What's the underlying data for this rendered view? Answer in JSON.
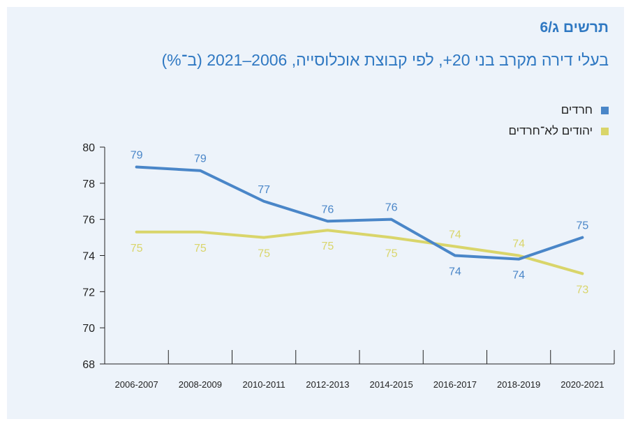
{
  "figure": {
    "label": "תרשים ג/6",
    "title": "בעלי דירה מקרב בני 20+, לפי קבוצת אוכלוסייה, 2006–2021 (ב־%)"
  },
  "legend": [
    {
      "label": "חרדים",
      "color": "#4a86c8"
    },
    {
      "label": "יהודים לא־חרדים",
      "color": "#d9d56a"
    }
  ],
  "chart_data": {
    "type": "line",
    "categories": [
      "2006-2007",
      "2008-2009",
      "2010-2011",
      "2012-2013",
      "2014-2015",
      "2016-2017",
      "2018-2019",
      "2020-2021"
    ],
    "y_ticks": [
      68,
      70,
      72,
      74,
      76,
      78,
      80
    ],
    "ylim": [
      68,
      80
    ],
    "grid": false,
    "legend_position": "top-right",
    "series": [
      {
        "name": "חרדים",
        "color": "#4a86c8",
        "values": [
          78.9,
          78.7,
          77.0,
          75.9,
          76.0,
          74.0,
          73.8,
          75.0
        ],
        "labels": [
          "79",
          "79",
          "77",
          "76",
          "76",
          "74",
          "74",
          "75"
        ],
        "label_side": [
          "above",
          "above",
          "above",
          "above",
          "above",
          "below",
          "below",
          "above"
        ]
      },
      {
        "name": "יהודים לא־חרדים",
        "color": "#d9d56a",
        "values": [
          75.3,
          75.3,
          75.0,
          75.4,
          75.0,
          74.5,
          74.0,
          73.0
        ],
        "labels": [
          "75",
          "75",
          "75",
          "75",
          "75",
          "74",
          "74",
          "73"
        ],
        "label_side": [
          "below",
          "below",
          "below",
          "below",
          "below",
          "above",
          "above",
          "below"
        ]
      }
    ]
  }
}
